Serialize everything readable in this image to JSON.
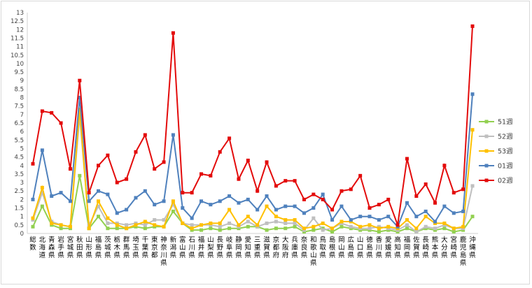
{
  "chart_data": {
    "type": "line",
    "title": "",
    "xlabel": "",
    "ylabel": "",
    "ylim": [
      0,
      13
    ],
    "y_tick_step": 0.5,
    "grid": false,
    "legend_position": "right",
    "categories": [
      "総数",
      "北海道",
      "青森県",
      "岩手県",
      "宮城県",
      "秋田県",
      "山形県",
      "福島県",
      "茨城県",
      "栃木県",
      "群馬県",
      "埼玉県",
      "千葉県",
      "東京都",
      "神奈川県",
      "新潟県",
      "富山県",
      "石川県",
      "福井県",
      "山梨県",
      "長野県",
      "岐阜県",
      "静岡県",
      "愛知県",
      "三重県",
      "滋賀県",
      "京都府",
      "大阪府",
      "兵庫県",
      "奈良県",
      "和歌山県",
      "鳥取県",
      "島根県",
      "岡山県",
      "広島県",
      "山口県",
      "徳島県",
      "香川県",
      "愛媛県",
      "高知県",
      "福岡県",
      "佐賀県",
      "長崎県",
      "熊本県",
      "大分県",
      "宮崎県",
      "鹿児島県",
      "沖縄県"
    ],
    "series": [
      {
        "name": "51週",
        "color": "#92d050",
        "values": [
          0.4,
          1.6,
          0.5,
          0.3,
          0.3,
          3.4,
          0.3,
          1.0,
          0.3,
          0.3,
          0.3,
          0.4,
          0.3,
          0.4,
          0.4,
          1.3,
          0.6,
          0.2,
          0.2,
          0.3,
          0.2,
          0.3,
          0.3,
          0.4,
          0.4,
          0.2,
          0.3,
          0.3,
          0.4,
          0.1,
          0.2,
          0.3,
          0.1,
          0.4,
          0.3,
          0.2,
          0.2,
          0.1,
          0.2,
          0.1,
          0.3,
          0.1,
          0.3,
          0.2,
          0.3,
          0.1,
          0.2,
          1.0
        ]
      },
      {
        "name": "52週",
        "color": "#bfbfbf",
        "values": [
          0.8,
          2.4,
          0.7,
          0.5,
          0.4,
          6.9,
          0.5,
          1.6,
          0.6,
          0.6,
          0.5,
          0.6,
          0.5,
          0.8,
          0.8,
          1.7,
          0.6,
          0.5,
          0.5,
          0.5,
          0.4,
          0.6,
          0.4,
          0.7,
          0.4,
          0.6,
          0.7,
          0.6,
          0.6,
          0.2,
          0.9,
          0.2,
          0.3,
          0.6,
          0.4,
          0.3,
          0.3,
          0.4,
          0.3,
          0.2,
          0.5,
          0.1,
          0.4,
          0.3,
          0.5,
          0.3,
          0.3,
          2.8
        ]
      },
      {
        "name": "53週",
        "color": "#ffc000",
        "values": [
          0.9,
          2.7,
          0.6,
          0.5,
          0.4,
          7.3,
          0.3,
          1.9,
          0.9,
          0.5,
          0.3,
          0.5,
          0.7,
          0.5,
          0.4,
          1.9,
          0.6,
          0.3,
          0.5,
          0.6,
          0.6,
          1.4,
          0.5,
          1.0,
          0.5,
          1.6,
          1.0,
          0.8,
          0.8,
          0.3,
          0.4,
          0.6,
          0.3,
          0.7,
          0.7,
          0.4,
          0.5,
          0.3,
          0.4,
          0.3,
          0.8,
          0.3,
          1.0,
          0.6,
          0.6,
          0.3,
          0.4,
          6.1
        ]
      },
      {
        "name": "01週",
        "color": "#4f81bd",
        "values": [
          2.0,
          4.9,
          2.2,
          2.4,
          1.9,
          8.0,
          1.9,
          2.5,
          2.3,
          1.2,
          1.4,
          2.1,
          2.5,
          1.7,
          1.9,
          5.8,
          1.5,
          0.9,
          1.9,
          1.7,
          1.9,
          2.2,
          1.8,
          2.0,
          1.4,
          2.2,
          1.4,
          1.6,
          1.6,
          1.2,
          1.5,
          2.3,
          0.8,
          1.6,
          0.8,
          1.0,
          1.0,
          0.8,
          1.0,
          0.4,
          1.8,
          1.0,
          1.3,
          0.7,
          1.6,
          1.2,
          1.3,
          8.2
        ]
      },
      {
        "name": "02週",
        "color": "#e30b0b",
        "values": [
          4.1,
          7.2,
          7.1,
          6.5,
          3.8,
          9.0,
          2.4,
          4.0,
          4.6,
          3.0,
          3.2,
          4.8,
          5.8,
          3.8,
          4.2,
          11.8,
          2.4,
          2.4,
          3.5,
          3.4,
          4.8,
          5.6,
          3.2,
          4.3,
          2.5,
          4.2,
          2.8,
          3.1,
          3.1,
          2.0,
          2.3,
          2.0,
          1.4,
          2.5,
          2.6,
          3.4,
          1.5,
          1.7,
          2.0,
          0.5,
          4.4,
          2.2,
          2.9,
          1.8,
          4.0,
          2.4,
          2.6,
          12.2
        ]
      }
    ]
  }
}
